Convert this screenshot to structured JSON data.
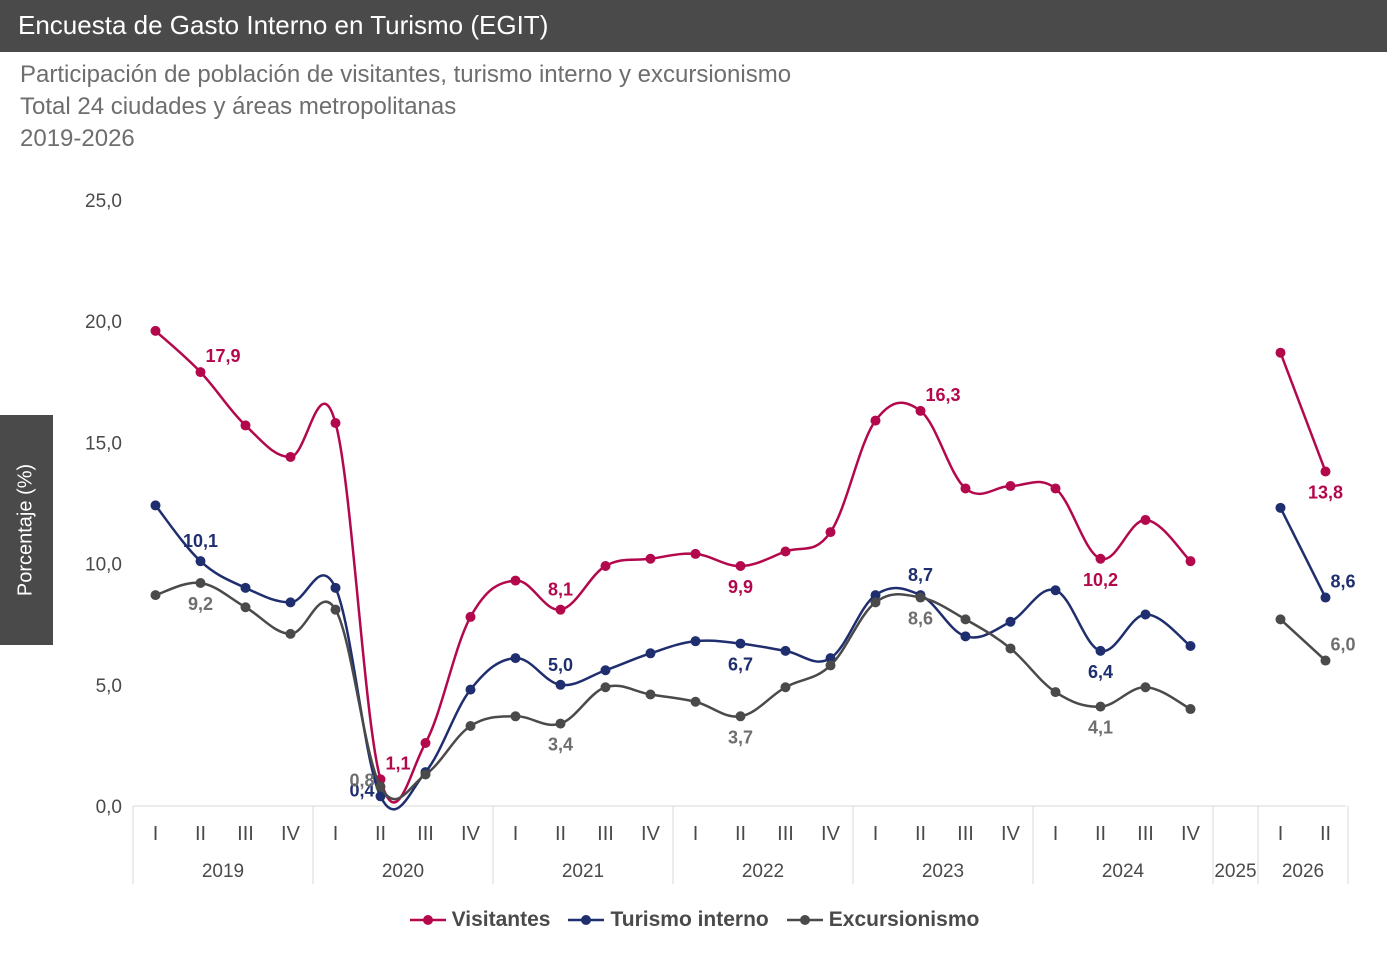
{
  "header": {
    "title": "Encuesta de Gasto Interno en Turismo (EGIT)"
  },
  "subtitle": {
    "line1": "Participación de población de visitantes, turismo interno y excursionismo",
    "line2": "Total 24 ciudades y áreas metropolitanas",
    "line3": "2019-2026"
  },
  "colors": {
    "visitantes": "#b3084c",
    "turismo": "#1f2e6e",
    "excursionismo": "#4a4a4a",
    "header": "#4a4a4a",
    "grid": "#d9d9d9"
  },
  "chart_data": {
    "type": "line",
    "ylabel": "Porcentaje (%)",
    "ylim": [
      0,
      25
    ],
    "yticks": [
      "0,0",
      "5,0",
      "10,0",
      "15,0",
      "20,0",
      "25,0"
    ],
    "grid": false,
    "legend_position": "bottom",
    "years": [
      {
        "label": "2019",
        "quarters": [
          "I",
          "II",
          "III",
          "IV"
        ]
      },
      {
        "label": "2020",
        "quarters": [
          "I",
          "II",
          "III",
          "IV"
        ]
      },
      {
        "label": "2021",
        "quarters": [
          "I",
          "II",
          "III",
          "IV"
        ]
      },
      {
        "label": "2022",
        "quarters": [
          "I",
          "II",
          "III",
          "IV"
        ]
      },
      {
        "label": "2023",
        "quarters": [
          "I",
          "II",
          "III",
          "IV"
        ]
      },
      {
        "label": "2024",
        "quarters": [
          "I",
          "II",
          "III",
          "IV"
        ]
      },
      {
        "label": "2025",
        "quarters": []
      },
      {
        "label": "2026",
        "quarters": [
          "I",
          "II"
        ]
      }
    ],
    "series": [
      {
        "name": "Visitantes",
        "values": [
          19.6,
          17.9,
          15.7,
          14.4,
          15.8,
          1.1,
          2.6,
          7.8,
          9.3,
          8.1,
          9.9,
          10.2,
          10.4,
          9.9,
          10.5,
          11.3,
          15.9,
          16.3,
          13.1,
          13.2,
          13.1,
          10.2,
          11.8,
          10.1,
          18.7,
          13.8
        ],
        "labels": [
          {
            "i": 1,
            "text": "17,9",
            "pos": "right"
          },
          {
            "i": 5,
            "text": "1,1",
            "pos": "right"
          },
          {
            "i": 9,
            "text": "8,1",
            "pos": "above"
          },
          {
            "i": 13,
            "text": "9,9",
            "pos": "below"
          },
          {
            "i": 17,
            "text": "16,3",
            "pos": "right"
          },
          {
            "i": 21,
            "text": "10,2",
            "pos": "below"
          },
          {
            "i": 25,
            "text": "13,8",
            "pos": "below"
          }
        ]
      },
      {
        "name": "Turismo interno",
        "values": [
          12.4,
          10.1,
          9.0,
          8.4,
          9.0,
          0.4,
          1.4,
          4.8,
          6.1,
          5.0,
          5.6,
          6.3,
          6.8,
          6.7,
          6.4,
          6.1,
          8.7,
          8.7,
          7.0,
          7.6,
          8.9,
          6.4,
          7.9,
          6.6,
          12.3,
          8.6
        ],
        "labels": [
          {
            "i": 1,
            "text": "10,1",
            "pos": "above"
          },
          {
            "i": 5,
            "text": "0,4",
            "pos": "left"
          },
          {
            "i": 9,
            "text": "5,0",
            "pos": "above"
          },
          {
            "i": 13,
            "text": "6,7",
            "pos": "below"
          },
          {
            "i": 17,
            "text": "8,7",
            "pos": "above"
          },
          {
            "i": 21,
            "text": "6,4",
            "pos": "below"
          },
          {
            "i": 25,
            "text": "8,6",
            "pos": "right"
          }
        ]
      },
      {
        "name": "Excursionismo",
        "values": [
          8.7,
          9.2,
          8.2,
          7.1,
          8.1,
          0.8,
          1.3,
          3.3,
          3.7,
          3.4,
          4.9,
          4.6,
          4.3,
          3.7,
          4.9,
          5.8,
          8.4,
          8.6,
          7.7,
          6.5,
          4.7,
          4.1,
          4.9,
          4.0,
          7.7,
          6.0
        ],
        "labels": [
          {
            "i": 1,
            "text": "9,2",
            "pos": "below"
          },
          {
            "i": 5,
            "text": "0,8",
            "pos": "left"
          },
          {
            "i": 9,
            "text": "3,4",
            "pos": "below"
          },
          {
            "i": 13,
            "text": "3,7",
            "pos": "below"
          },
          {
            "i": 17,
            "text": "8,6",
            "pos": "below"
          },
          {
            "i": 21,
            "text": "4,1",
            "pos": "below"
          },
          {
            "i": 25,
            "text": "6,0",
            "pos": "right"
          }
        ]
      }
    ]
  }
}
